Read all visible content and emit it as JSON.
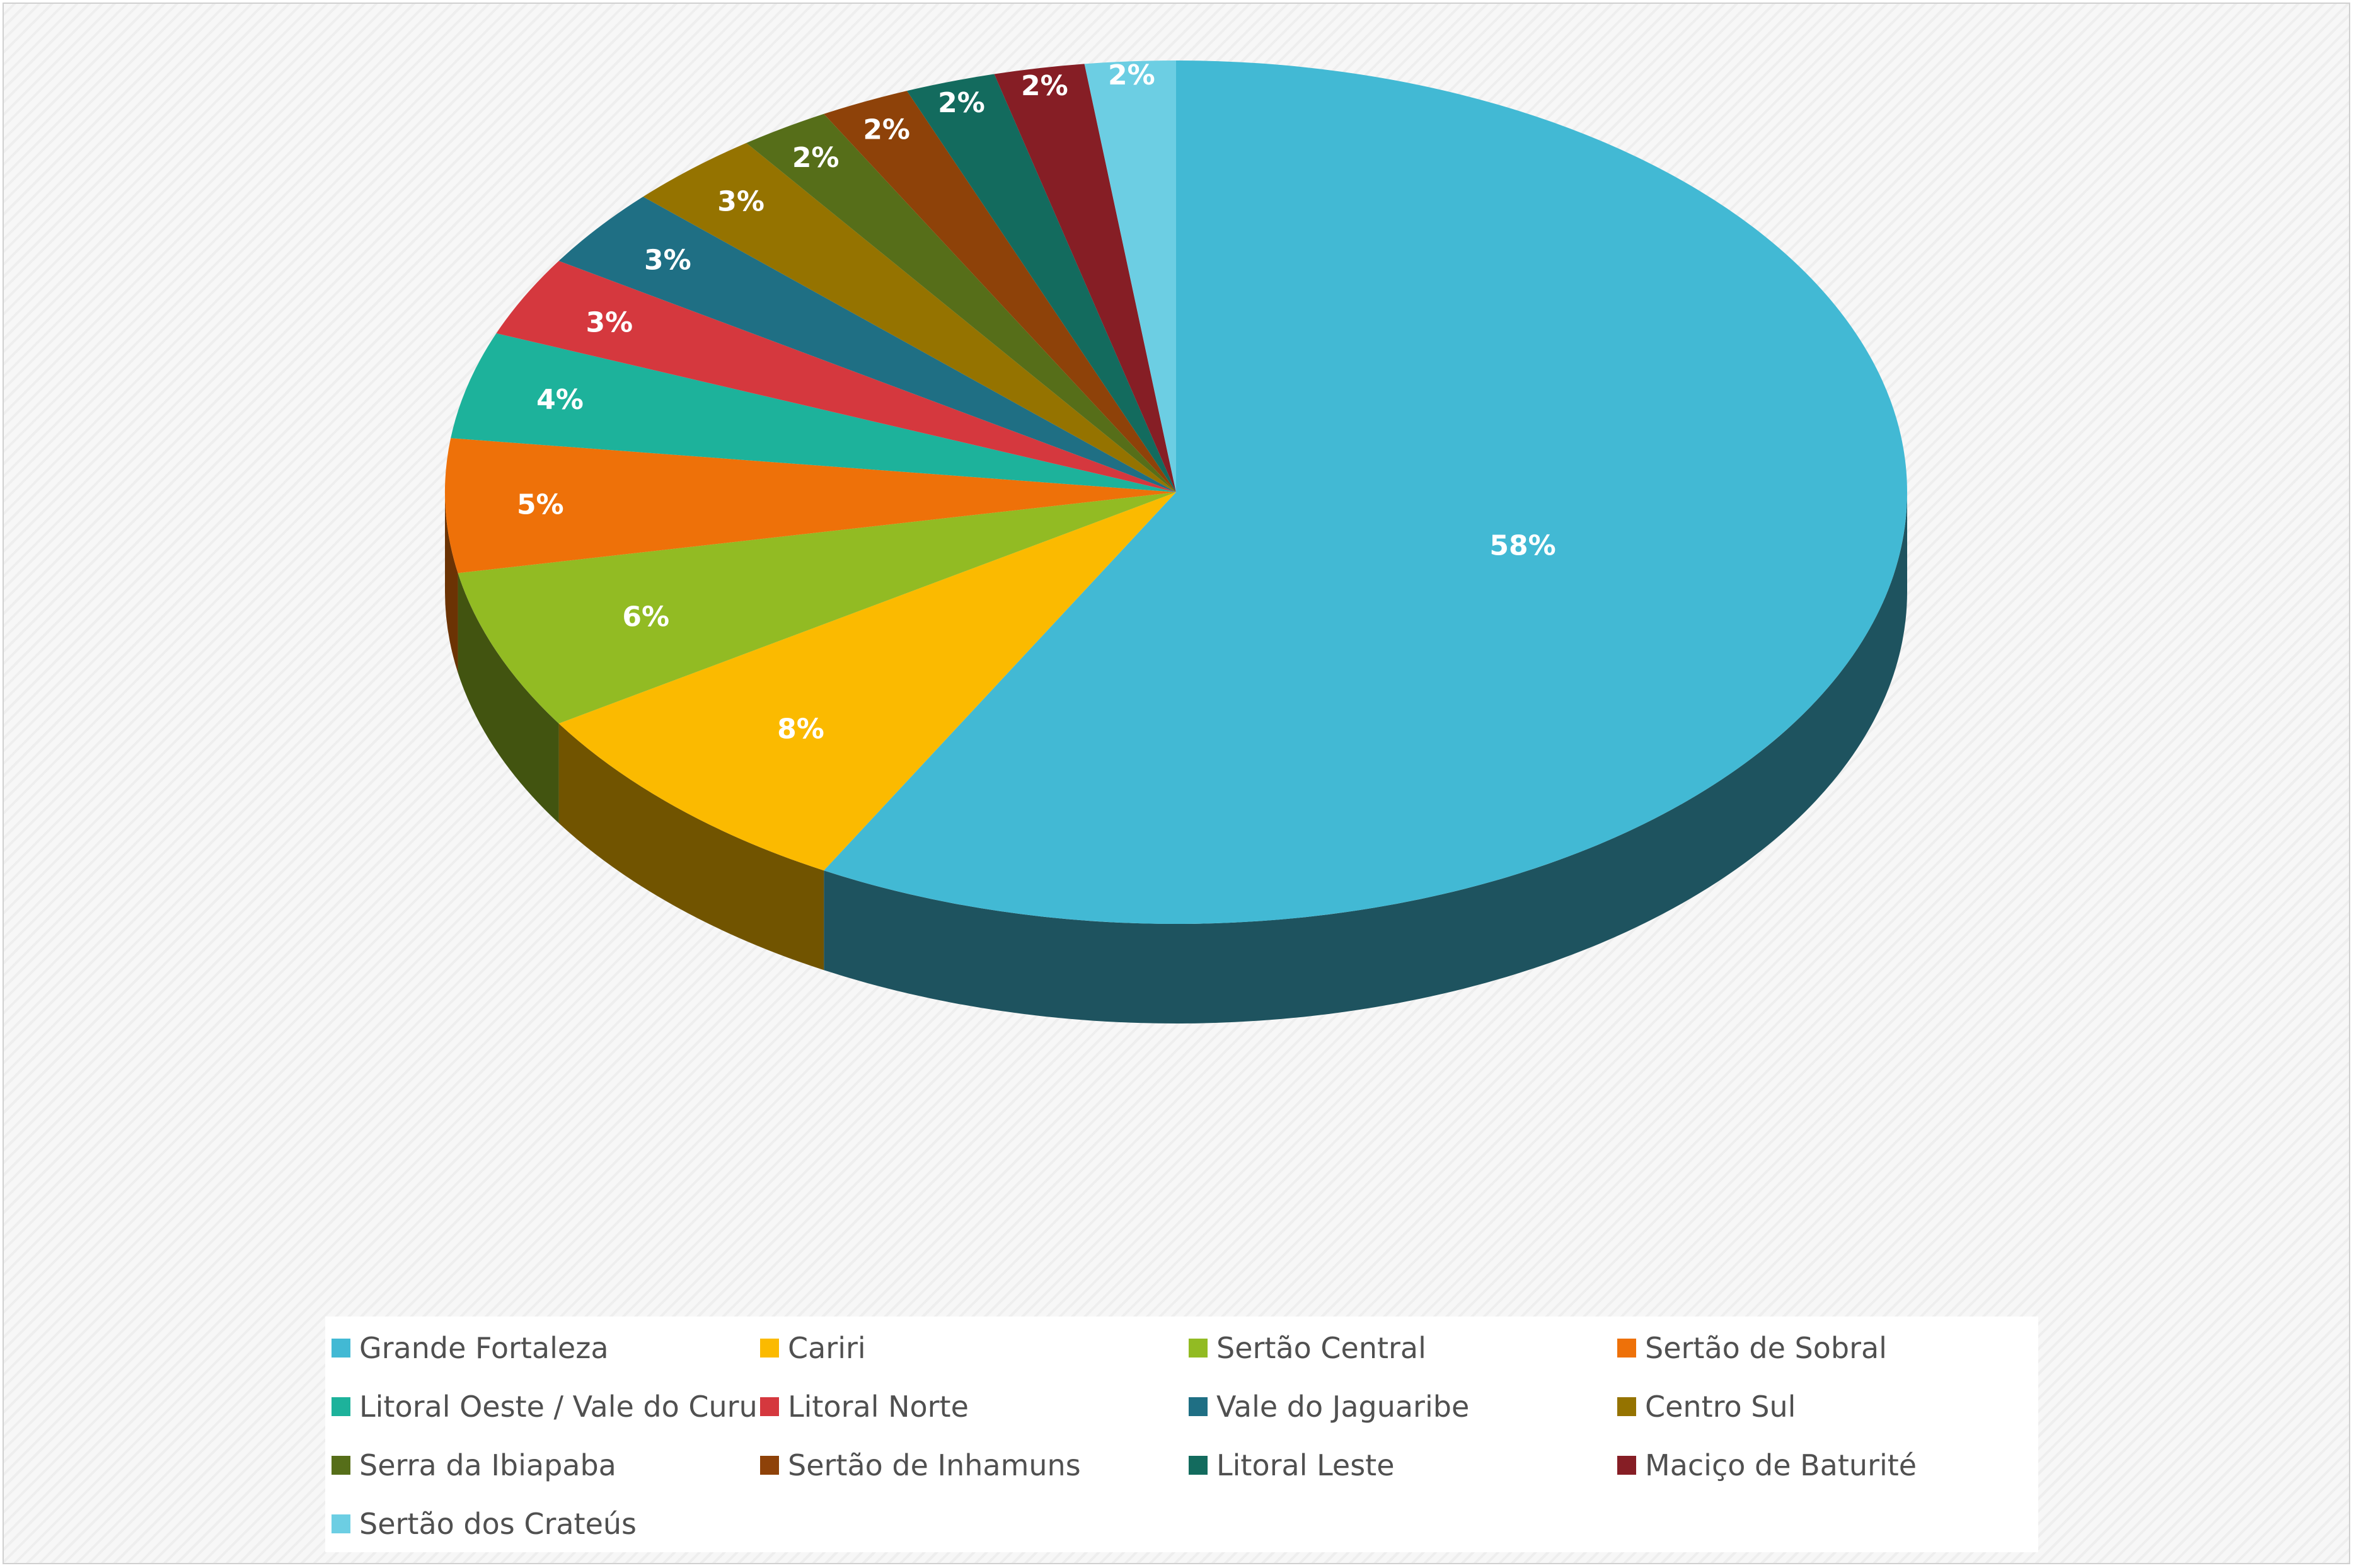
{
  "chart_data": {
    "type": "pie",
    "style": "3d",
    "title": "",
    "slices": [
      {
        "label": "Grande Fortaleza",
        "value": 58,
        "display": "58%",
        "color": "#42B9D4"
      },
      {
        "label": "Cariri",
        "value": 8,
        "display": "8%",
        "color": "#FBBA00"
      },
      {
        "label": "Sertão Central",
        "value": 6,
        "display": "6%",
        "color": "#92BB23"
      },
      {
        "label": "Sertão de Sobral",
        "value": 5,
        "display": "5%",
        "color": "#EE7109"
      },
      {
        "label": "Litoral Oeste / Vale do Curu",
        "value": 4,
        "display": "4%",
        "color": "#1DB29B"
      },
      {
        "label": "Litoral Norte",
        "value": 3,
        "display": "3%",
        "color": "#D5383E"
      },
      {
        "label": "Vale do Jaguaribe",
        "value": 3,
        "display": "3%",
        "color": "#1F6F84"
      },
      {
        "label": "Centro Sul",
        "value": 3,
        "display": "3%",
        "color": "#957300"
      },
      {
        "label": "Serra da Ibiapaba",
        "value": 2,
        "display": "2%",
        "color": "#566E19"
      },
      {
        "label": "Sertão de Inhamuns",
        "value": 2,
        "display": "2%",
        "color": "#8E4209"
      },
      {
        "label": "Litoral Leste",
        "value": 2,
        "display": "2%",
        "color": "#136B5E"
      },
      {
        "label": "Maciço de Baturité",
        "value": 2,
        "display": "2%",
        "color": "#861E25"
      },
      {
        "label": "Sertão dos Crateús",
        "value": 2,
        "display": "2%",
        "color": "#6CCEE3"
      }
    ],
    "legend_position": "bottom",
    "legend_columns": 4
  }
}
